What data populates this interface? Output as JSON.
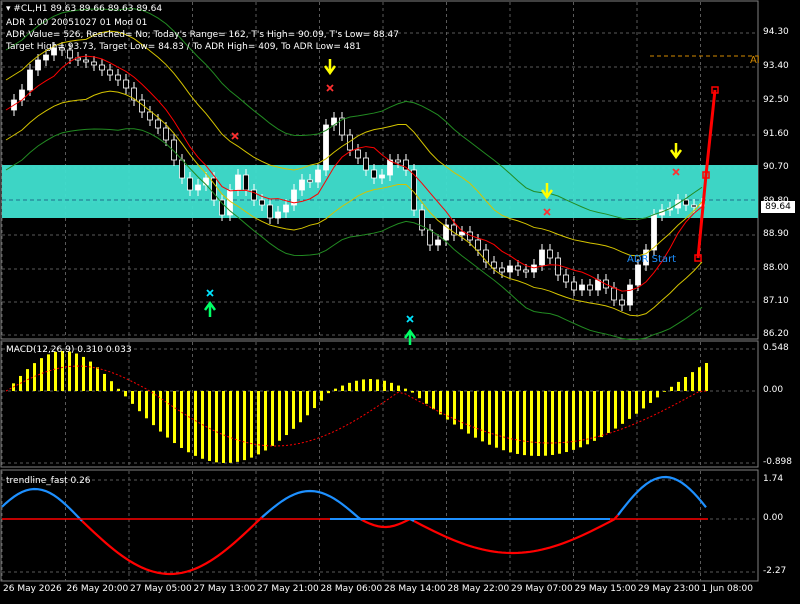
{
  "header": {
    "symbol_line": "#CL,H1  89.63 89.66 89.63 89.64",
    "adr_line": "ADR 1.00 20051027 01 Mod 01",
    "adr_value_line": "ADR Value= 526, Reached= No; Today's Range= 162, T's High= 90.09, T's Low= 88.47",
    "target_line": "Target High= 93.73, Target Low= 84.83 / To ADR High= 409, To ADR Low= 481"
  },
  "main_axis": {
    "ticks": [
      "94.30",
      "93.40",
      "92.50",
      "91.60",
      "90.70",
      "89.80",
      "88.90",
      "88.00",
      "87.10",
      "86.20"
    ],
    "current_price": "89.64",
    "adr_tag": "Al"
  },
  "macd": {
    "title": "MACD(12,26,9) 0.310 0.033",
    "ticks": [
      "0.548",
      "0.00",
      "-0.898"
    ]
  },
  "trendline": {
    "title": "trendline_fast 0.26",
    "ticks": [
      "1.74",
      "0.00",
      "-2.27"
    ]
  },
  "x_axis": {
    "labels": [
      "26 May 2026",
      "26 May 20:00",
      "27 May 05:00",
      "27 May 13:00",
      "27 May 21:00",
      "28 May 06:00",
      "28 May 14:00",
      "28 May 22:00",
      "29 May 07:00",
      "29 May 15:00",
      "29 May 23:00",
      "1 Jun 08:00"
    ]
  },
  "annotation": {
    "adr_start": "ADR Start"
  },
  "colors": {
    "background": "#000000",
    "zone": "#40e0d0",
    "bull_candle": "#ffffff",
    "bear_candle": "#000000",
    "macd_bar": "#ffff00",
    "macd_signal": "#ff0000",
    "trend_up": "#1e90ff",
    "trend_down": "#ff0000",
    "ma_red": "#ff0000",
    "band_yellow": "#d4c300",
    "band_green": "#228b22"
  },
  "icons": [
    "down-arrow-yellow-icon",
    "up-arrow-green-icon",
    "cross-red-icon",
    "cross-cyan-icon",
    "tick-gray-icon"
  ]
}
